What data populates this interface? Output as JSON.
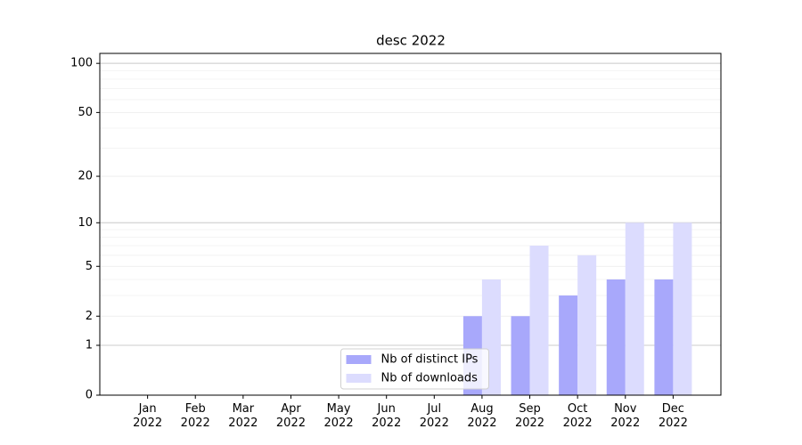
{
  "chart_data": {
    "type": "bar",
    "title": "desc 2022",
    "categories": [
      "Jan\n2022",
      "Feb\n2022",
      "Mar\n2022",
      "Apr\n2022",
      "May\n2022",
      "Jun\n2022",
      "Jul\n2022",
      "Aug\n2022",
      "Sep\n2022",
      "Oct\n2022",
      "Nov\n2022",
      "Dec\n2022"
    ],
    "series": [
      {
        "name": "Nb of distinct IPs",
        "color": "#a8a8fb",
        "values": [
          0,
          0,
          0,
          0,
          0,
          0,
          0,
          2,
          2,
          3,
          4,
          4
        ]
      },
      {
        "name": "Nb of downloads",
        "color": "#dcdcfe",
        "values": [
          0,
          0,
          0,
          0,
          0,
          0,
          0,
          4,
          7,
          6,
          10,
          10
        ]
      }
    ],
    "y_scale": "log1p",
    "ylim": [
      0,
      115
    ],
    "yticks": [
      0,
      1,
      2,
      5,
      10,
      20,
      50,
      100
    ],
    "minor_grid": [
      3,
      4,
      6,
      7,
      8,
      9,
      30,
      40,
      60,
      70,
      80,
      90
    ],
    "major_grid": [
      1,
      10,
      100
    ],
    "grid": true,
    "legend_loc": "lower center"
  }
}
